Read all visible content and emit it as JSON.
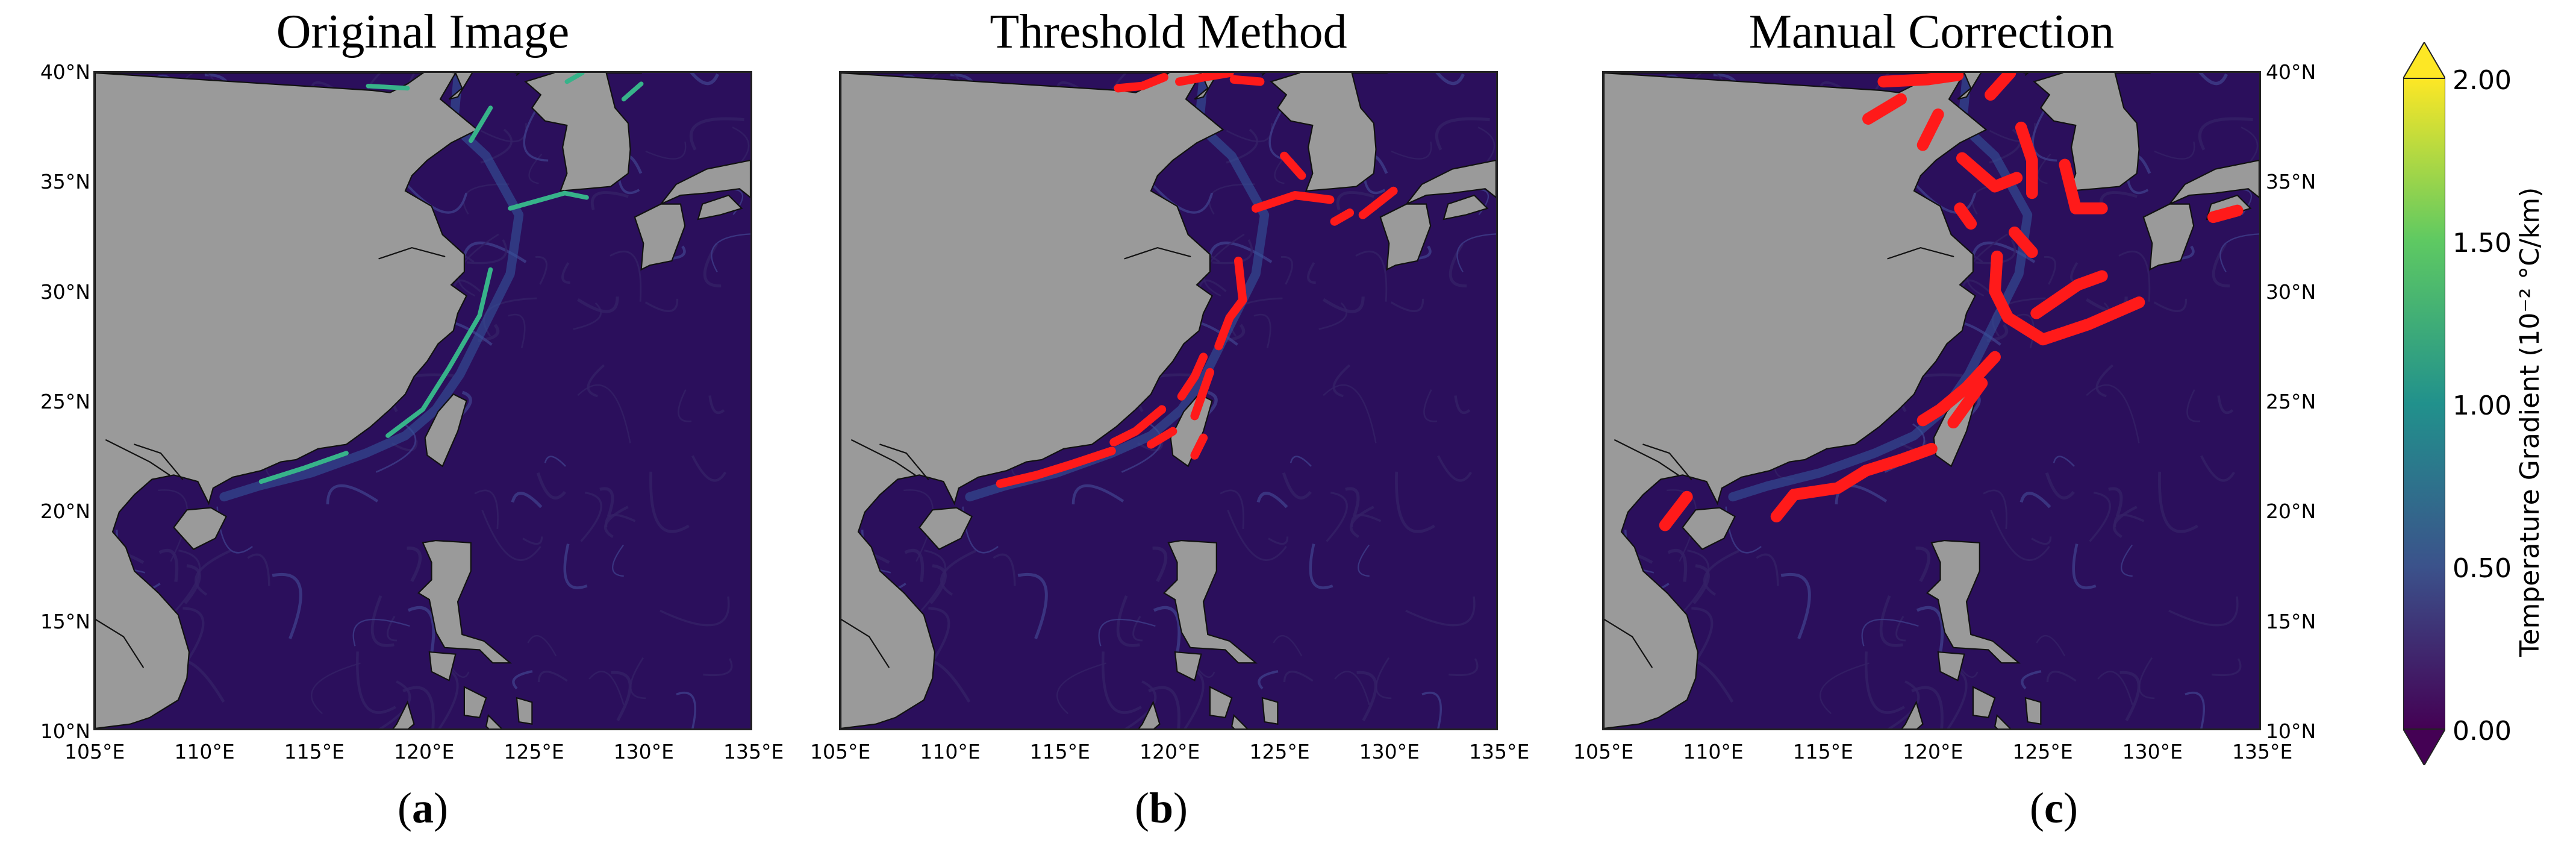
{
  "panels": [
    {
      "title": "Original Image",
      "label": "a"
    },
    {
      "title": "Threshold Method",
      "label": "b"
    },
    {
      "title": "Manual Correction",
      "label": "c"
    }
  ],
  "lat_ticks": [
    "40°N",
    "35°N",
    "30°N",
    "25°N",
    "20°N",
    "15°N",
    "10°N"
  ],
  "lon_ticks": [
    "105°E",
    "110°E",
    "115°E",
    "120°E",
    "125°E",
    "130°E",
    "135°E"
  ],
  "colorbar": {
    "label": "Temperature Gradient (10⁻² °C/km)",
    "ticks": [
      "2.00",
      "1.50",
      "1.00",
      "0.50",
      "0.00"
    ],
    "range": [
      0,
      2
    ],
    "extend": "both",
    "colormap": [
      "#440154",
      "#3b528b",
      "#21918c",
      "#5ec962",
      "#fde725"
    ]
  },
  "colors": {
    "land": "#9a9a9a",
    "ocean": "#2b0f5c",
    "front": "#ff1a1a",
    "coast": "#111111"
  }
}
